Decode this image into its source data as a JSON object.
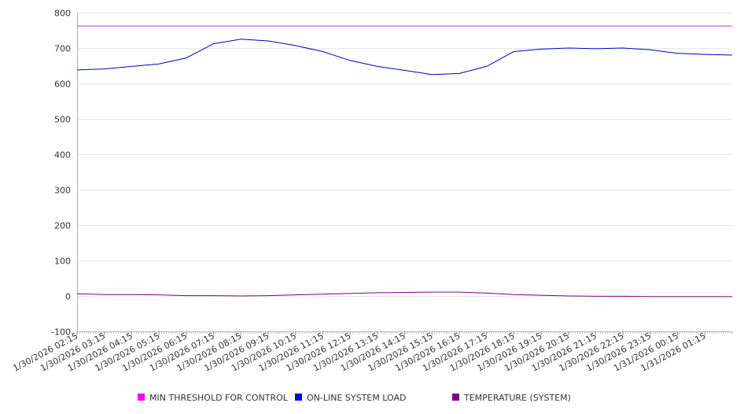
{
  "chart_data": {
    "type": "line",
    "title": "",
    "xlabel": "",
    "ylabel": "",
    "ylim": [
      -100,
      800
    ],
    "y_ticks": [
      -100,
      0,
      100,
      200,
      300,
      400,
      500,
      600,
      700,
      800
    ],
    "x_start_label": "1/30/2026 02:15",
    "x_end_label": "1/31/2026 02:15",
    "x_tick_labels": [
      "1/30/2026 02:15",
      "1/30/2026 03:15",
      "1/30/2026 04:15",
      "1/30/2026 05:15",
      "1/30/2026 06:15",
      "1/30/2026 07:15",
      "1/30/2026 08:15",
      "1/30/2026 09:15",
      "1/30/2026 10:15",
      "1/30/2026 11:15",
      "1/30/2026 12:15",
      "1/30/2026 13:15",
      "1/30/2026 14:15",
      "1/30/2026 15:15",
      "1/30/2026 16:15",
      "1/30/2026 17:15",
      "1/30/2026 18:15",
      "1/30/2026 19:15",
      "1/30/2026 20:15",
      "1/30/2026 21:15",
      "1/30/2026 22:15",
      "1/30/2026 23:15",
      "1/31/2026 00:15",
      "1/31/2026 01:15"
    ],
    "grid": true,
    "legend_position": "bottom",
    "series": [
      {
        "name": "MIN THRESHOLD FOR CONTROL",
        "color": "#cc33cc",
        "legend_color": "#ff00ff",
        "x": [
          "1/30/2026 02:15",
          "1/31/2026 02:15"
        ],
        "values": [
          762,
          762
        ]
      },
      {
        "name": "ON-LINE SYSTEM LOAD",
        "color": "#0000cc",
        "legend_color": "#0000ff",
        "x": [
          "1/30/2026 02:15",
          "1/30/2026 03:15",
          "1/30/2026 04:15",
          "1/30/2026 05:15",
          "1/30/2026 06:15",
          "1/30/2026 07:15",
          "1/30/2026 08:15",
          "1/30/2026 09:15",
          "1/30/2026 10:15",
          "1/30/2026 11:15",
          "1/30/2026 12:15",
          "1/30/2026 13:15",
          "1/30/2026 14:15",
          "1/30/2026 15:15",
          "1/30/2026 16:15",
          "1/30/2026 17:15",
          "1/30/2026 18:15",
          "1/30/2026 19:15",
          "1/30/2026 20:15",
          "1/30/2026 21:15",
          "1/30/2026 22:15",
          "1/30/2026 23:15",
          "1/31/2026 00:15",
          "1/31/2026 01:15",
          "1/31/2026 02:15"
        ],
        "values": [
          638,
          641,
          648,
          655,
          672,
          712,
          725,
          720,
          707,
          690,
          665,
          648,
          637,
          625,
          628,
          648,
          690,
          697,
          700,
          698,
          700,
          695,
          685,
          682,
          680
        ]
      },
      {
        "name": "TEMPERATURE (SYSTEM)",
        "color": "#800080",
        "legend_color": "#800080",
        "x": [
          "1/30/2026 02:15",
          "1/30/2026 03:15",
          "1/30/2026 04:15",
          "1/30/2026 05:15",
          "1/30/2026 06:15",
          "1/30/2026 07:15",
          "1/30/2026 08:15",
          "1/30/2026 09:15",
          "1/30/2026 10:15",
          "1/30/2026 11:15",
          "1/30/2026 12:15",
          "1/30/2026 13:15",
          "1/30/2026 14:15",
          "1/30/2026 15:15",
          "1/30/2026 16:15",
          "1/30/2026 17:15",
          "1/30/2026 18:15",
          "1/30/2026 19:15",
          "1/30/2026 20:15",
          "1/30/2026 21:15",
          "1/30/2026 22:15",
          "1/30/2026 23:15",
          "1/31/2026 00:15",
          "1/31/2026 01:15",
          "1/31/2026 02:15"
        ],
        "values": [
          6,
          4,
          4,
          3,
          1,
          1,
          0,
          1,
          3,
          5,
          7,
          9,
          10,
          11,
          11,
          8,
          4,
          2,
          0,
          -1,
          -1,
          -2,
          -2,
          -2,
          -2
        ]
      }
    ]
  }
}
